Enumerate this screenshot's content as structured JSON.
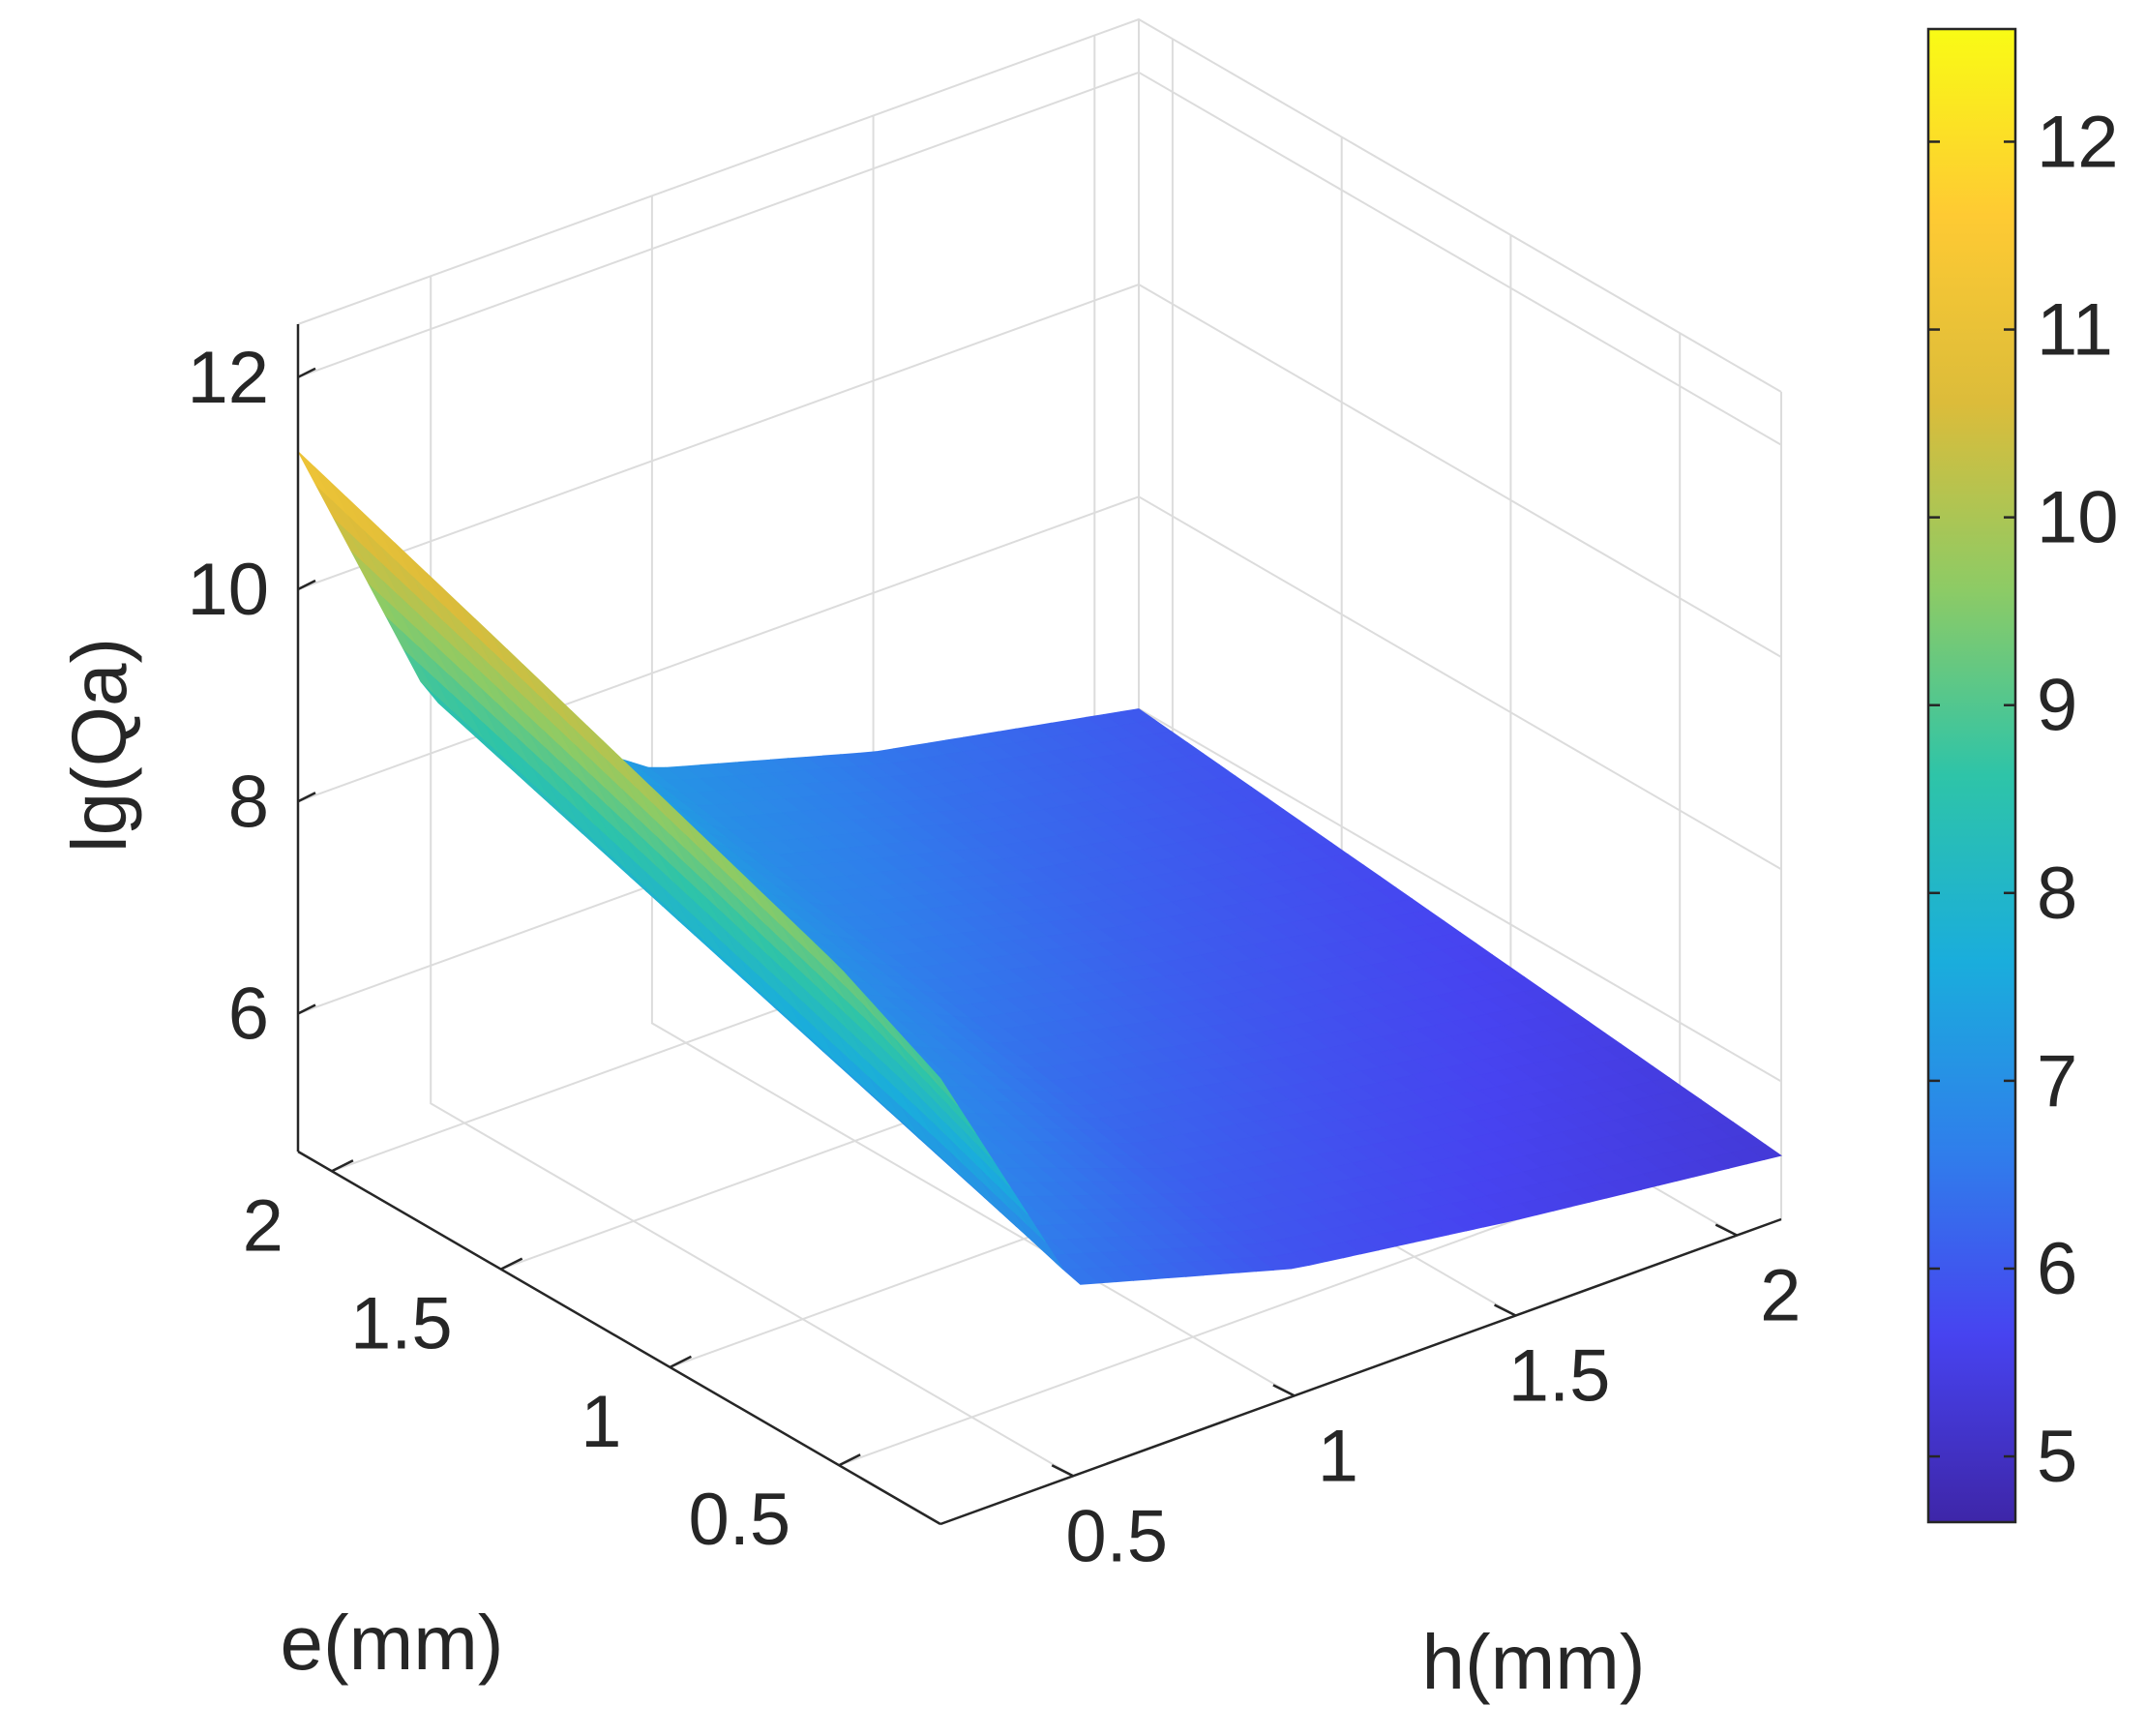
{
  "chart_data": {
    "type": "surface",
    "title": "",
    "xlabel": "h(mm)",
    "ylabel": "e(mm)",
    "zlabel": "lg(Qa)",
    "xlim": [
      0.2,
      2.1
    ],
    "ylim": [
      0.2,
      2.1
    ],
    "zlim": [
      4.7,
      12.5
    ],
    "x_ticks": [
      "0.5",
      "1",
      "1.5",
      "2"
    ],
    "x_tick_values": [
      0.5,
      1,
      1.5,
      2
    ],
    "y_ticks": [
      "0.5",
      "1",
      "1.5",
      "2"
    ],
    "y_tick_values": [
      0.5,
      1,
      1.5,
      2
    ],
    "z_ticks": [
      "6",
      "8",
      "10",
      "12"
    ],
    "z_tick_values": [
      6,
      8,
      10,
      12
    ],
    "colorbar": {
      "limits": [
        4.65,
        12.6
      ],
      "ticks": [
        "5",
        "6",
        "7",
        "8",
        "9",
        "10",
        "11",
        "12"
      ],
      "tick_values": [
        5,
        6,
        7,
        8,
        9,
        10,
        11,
        12
      ],
      "colormap": "parula",
      "colors": [
        "#3e26a8",
        "#4743f0",
        "#2f7feb",
        "#1aaddc",
        "#2ec4a8",
        "#8dcb65",
        "#dcbc3a",
        "#feca33",
        "#f9fb15"
      ]
    },
    "surface_description": "lg(Qa) surface over h and e; maximum about 11.3 at small h with e near 2, rising to about 8.9 at small h and small e, decreasing toward about 5.3 at large h",
    "sample_points": [
      {
        "h": 0.2,
        "e": 2.1,
        "lgQa": 11.3
      },
      {
        "h": 0.2,
        "e": 1.5,
        "lgQa": 10.6
      },
      {
        "h": 0.2,
        "e": 1.0,
        "lgQa": 10.0
      },
      {
        "h": 0.2,
        "e": 0.5,
        "lgQa": 9.4
      },
      {
        "h": 0.2,
        "e": 0.2,
        "lgQa": 8.9
      },
      {
        "h": 0.5,
        "e": 2.1,
        "lgQa": 8.5
      },
      {
        "h": 0.5,
        "e": 0.2,
        "lgQa": 6.5
      },
      {
        "h": 1.0,
        "e": 2.1,
        "lgQa": 7.1
      },
      {
        "h": 1.0,
        "e": 0.2,
        "lgQa": 5.9
      },
      {
        "h": 1.5,
        "e": 2.1,
        "lgQa": 6.5
      },
      {
        "h": 1.5,
        "e": 0.2,
        "lgQa": 5.6
      },
      {
        "h": 2.1,
        "e": 2.1,
        "lgQa": 6.0
      },
      {
        "h": 2.1,
        "e": 0.2,
        "lgQa": 5.3
      }
    ]
  }
}
